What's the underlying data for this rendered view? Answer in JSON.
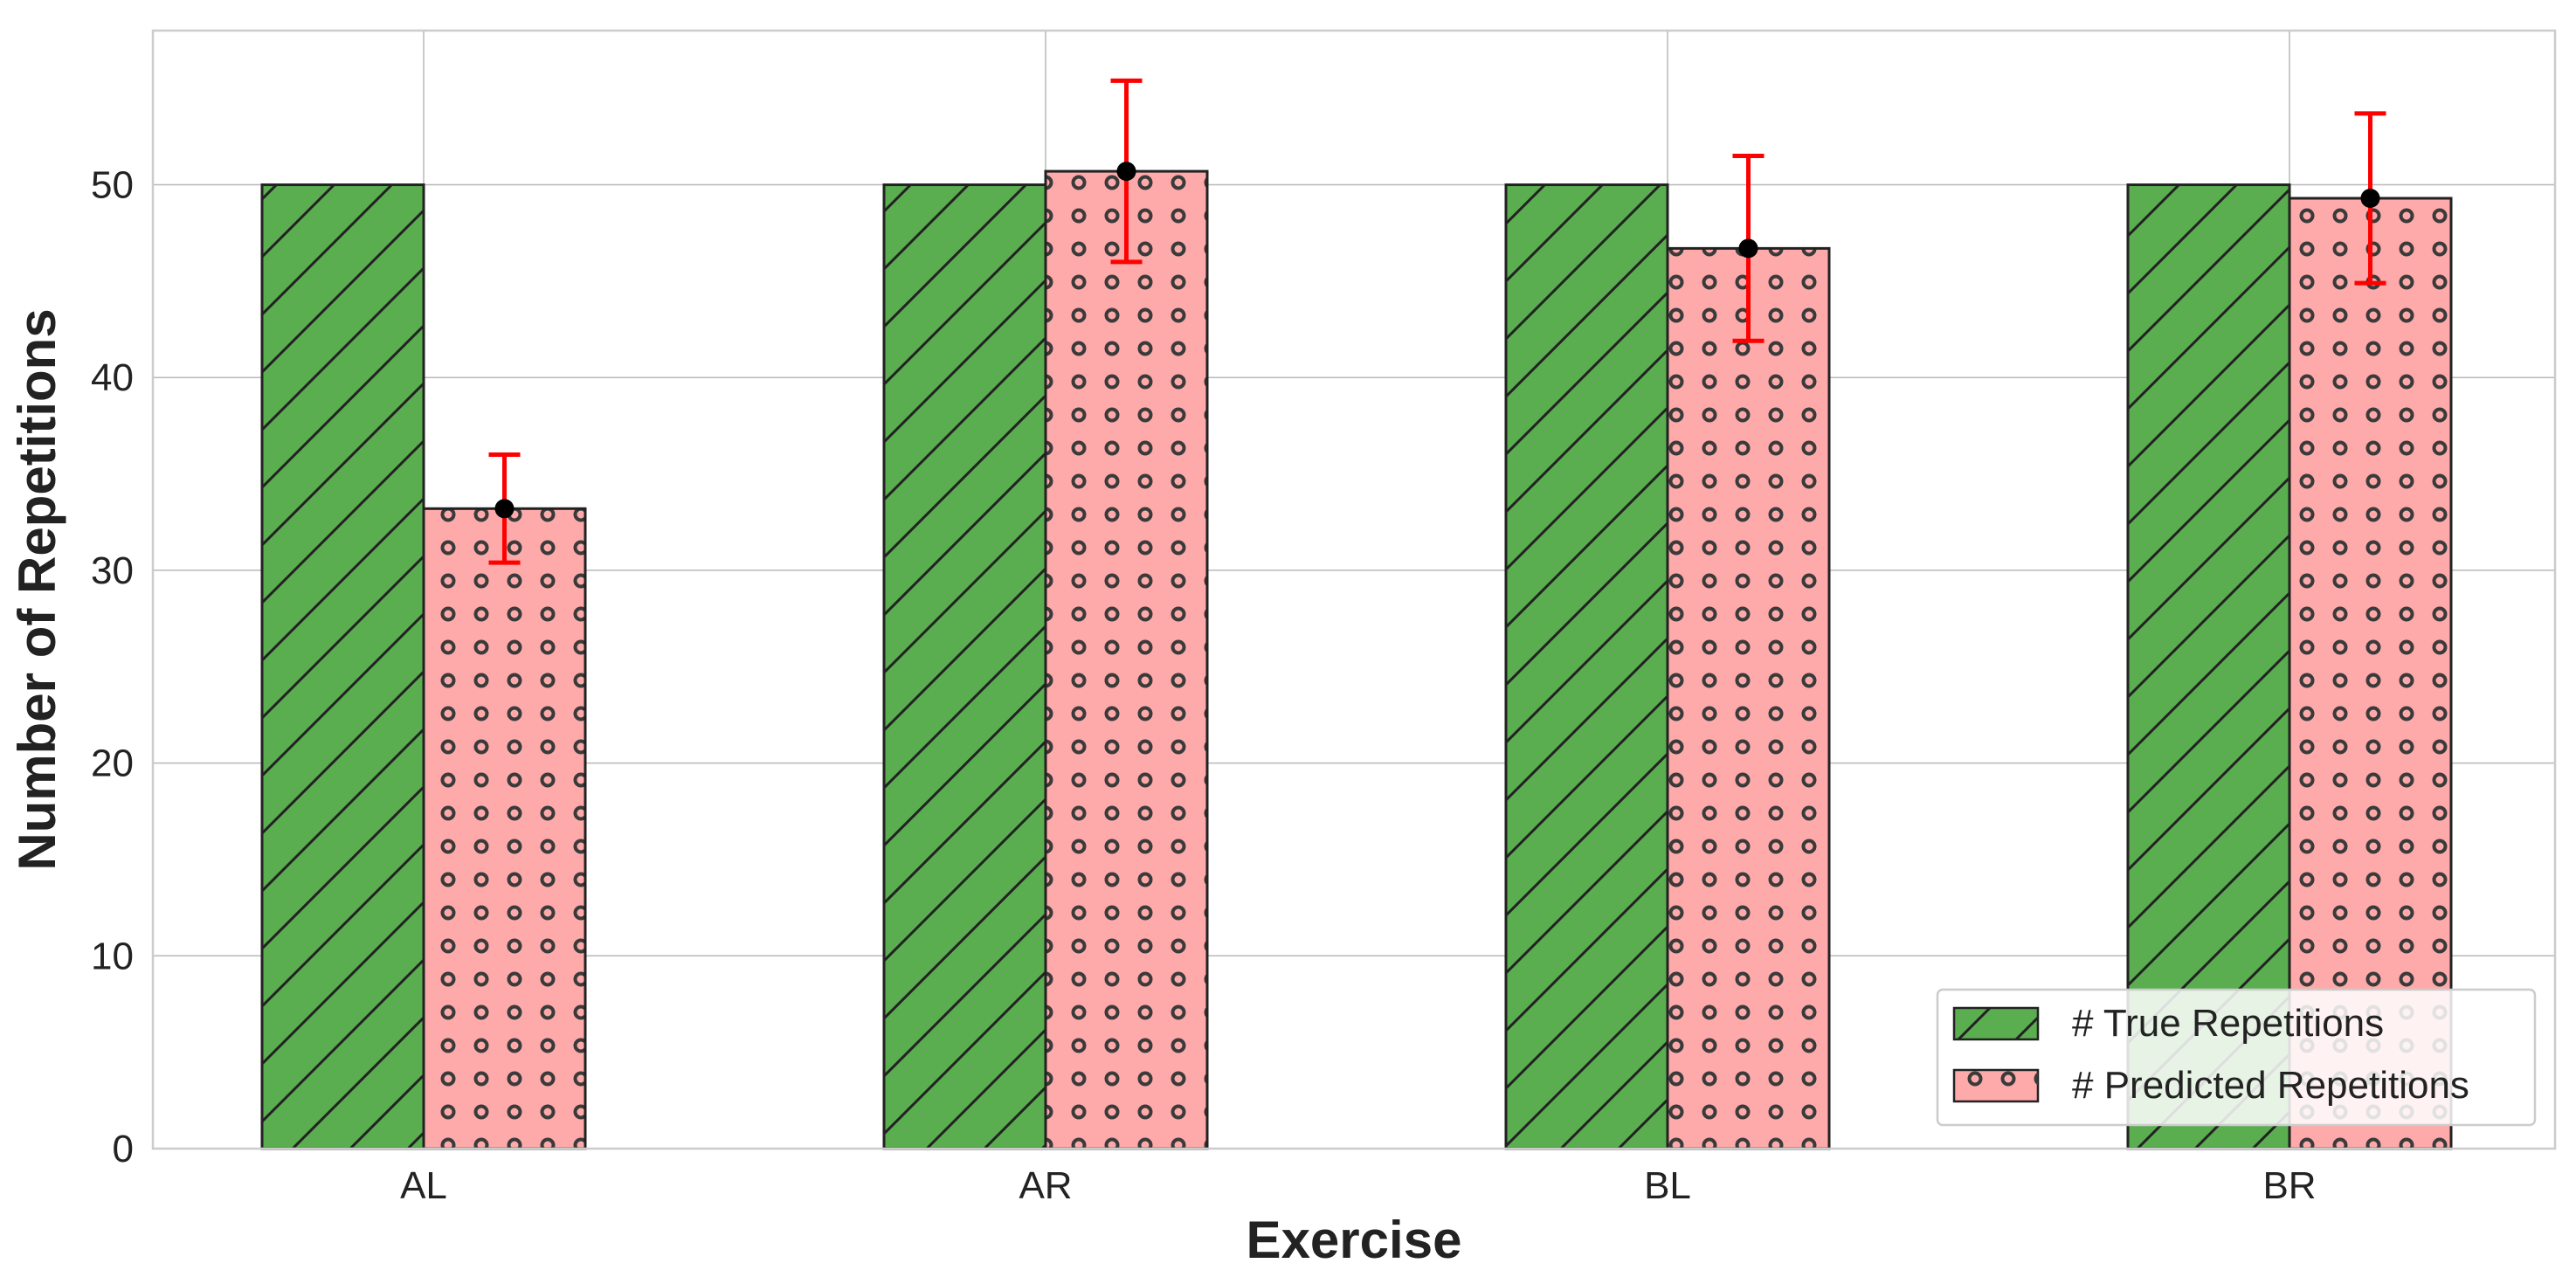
{
  "chart_data": {
    "type": "bar",
    "title": "",
    "xlabel": "Exercise",
    "ylabel": "Number of Repetitions",
    "categories": [
      "AL",
      "AR",
      "BL",
      "BR"
    ],
    "ylim": [
      0,
      58
    ],
    "yticks": [
      0,
      10,
      20,
      30,
      40,
      50
    ],
    "grid": true,
    "legend_position": "bottom-right",
    "series": [
      {
        "name": "# True Repetitions",
        "values": [
          50,
          50,
          50,
          50
        ],
        "color": "#5aae50",
        "hatch": "diagonal"
      },
      {
        "name": "# Predicted Repetitions",
        "values": [
          33.2,
          50.7,
          46.7,
          49.3
        ],
        "errors": [
          2.8,
          4.7,
          4.8,
          4.4
        ],
        "color": "#ffaaaa",
        "hatch": "circles"
      }
    ],
    "error_color": "#ff0000"
  }
}
